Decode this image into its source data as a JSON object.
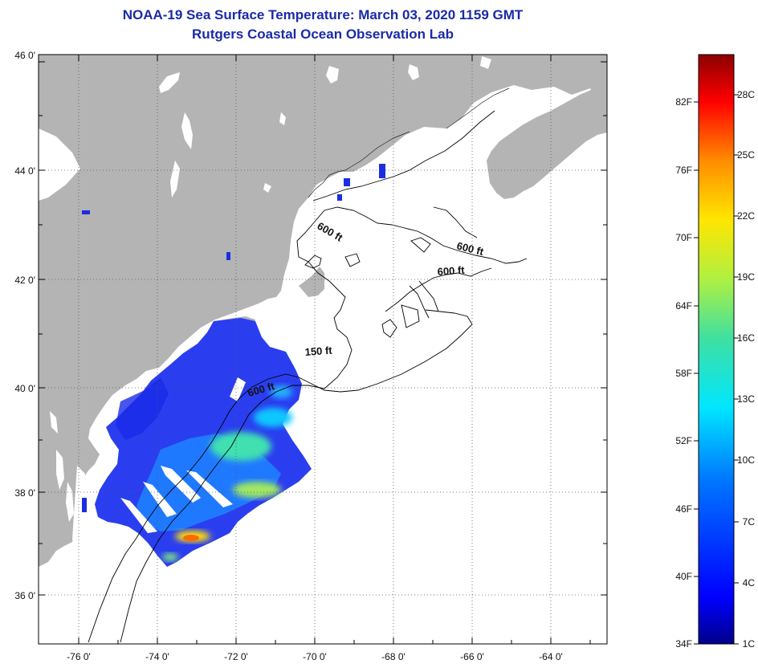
{
  "header": {
    "title": "NOAA-19 Sea Surface Temperature:  March 03, 2020 1159 GMT",
    "subtitle": "Rutgers Coastal Ocean Observation Lab"
  },
  "map": {
    "lat_ticks": [
      "46 0'",
      "44 0'",
      "42 0'",
      "40 0'",
      "38 0'",
      "36 0'"
    ],
    "lon_ticks": [
      "-76 0'",
      "-74 0'",
      "-72 0'",
      "-70 0'",
      "-68 0'",
      "-66 0'",
      "-64 0'"
    ],
    "contour_labels": [
      "600 ft",
      "600 ft",
      "600 ft",
      "150 ft",
      "600 ft"
    ],
    "colors": {
      "land": "#b4b4b4",
      "ocean": "#ffffff",
      "gridline": "#555555"
    }
  },
  "colorbar": {
    "fahrenheit_labels": [
      "82F",
      "76F",
      "70F",
      "64F",
      "58F",
      "52F",
      "46F",
      "40F",
      "34F"
    ],
    "celsius_labels": [
      "28C",
      "25C",
      "22C",
      "19C",
      "16C",
      "13C",
      "10C",
      "7C",
      "4C",
      "1C"
    ]
  }
}
